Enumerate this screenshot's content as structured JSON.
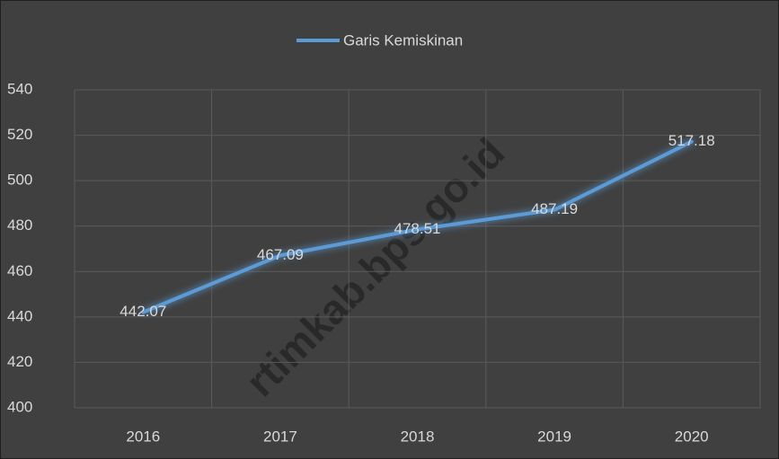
{
  "chart_data": {
    "type": "line",
    "categories": [
      "2016",
      "2017",
      "2018",
      "2019",
      "2020"
    ],
    "series": [
      {
        "name": "Garis Kemiskinan",
        "color": "#5b9bd5",
        "values": [
          442.07,
          467.09,
          478.51,
          487.19,
          517.18
        ]
      }
    ],
    "ylim": [
      400,
      540
    ],
    "yticks": [
      400,
      420,
      440,
      460,
      480,
      500,
      520,
      540
    ],
    "grid": true,
    "legend": "top",
    "watermark": "rtimkab.bps.go.id"
  }
}
